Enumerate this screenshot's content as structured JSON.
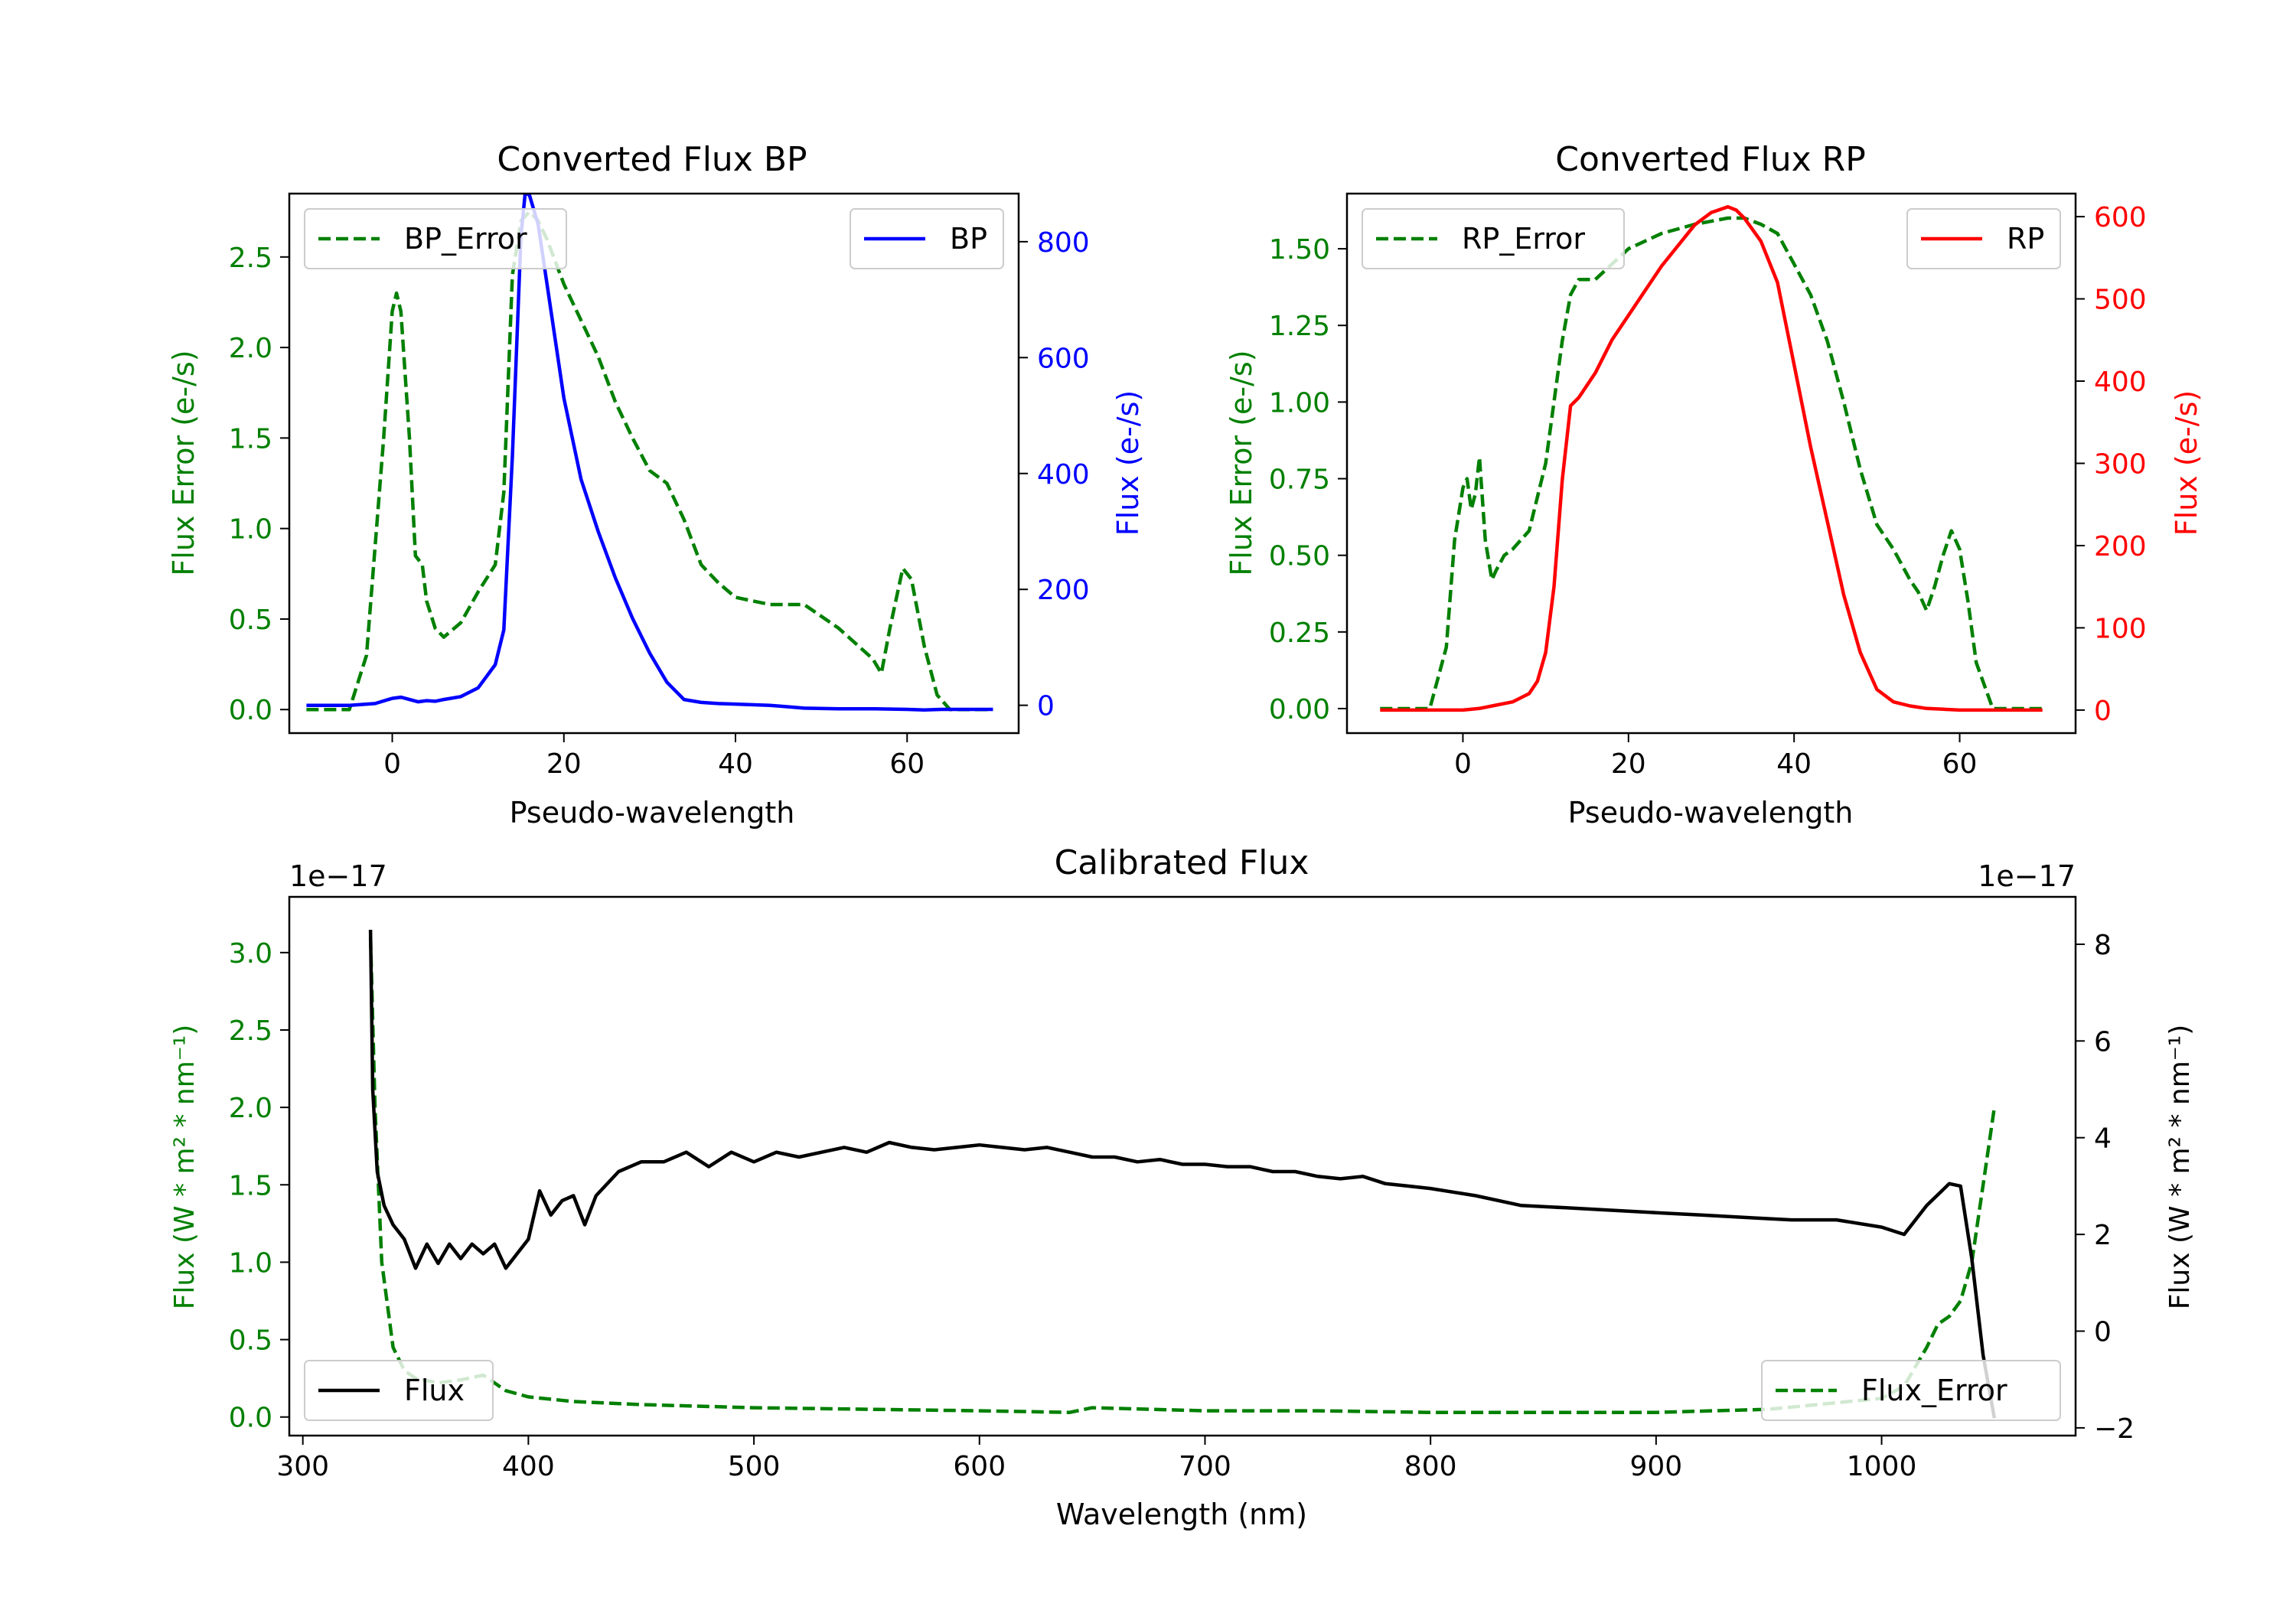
{
  "chart_data": [
    {
      "id": "bp",
      "type": "line",
      "title": "Converted Flux BP",
      "xlabel": "Pseudo-wavelength",
      "ylabel_left": "Flux Error (e-/s)",
      "ylabel_right": "Flux (e-/s)",
      "xlim": [
        -12,
        73
      ],
      "ylim_left": [
        -0.13,
        2.85
      ],
      "ylim_right": [
        -48,
        883
      ],
      "xticks": [
        0,
        20,
        40,
        60
      ],
      "yticks_left": [
        0.0,
        0.5,
        1.0,
        1.5,
        2.0,
        2.5
      ],
      "yticks_left_labels": [
        "0.0",
        "0.5",
        "1.0",
        "1.5",
        "2.0",
        "2.5"
      ],
      "yticks_right": [
        0,
        200,
        400,
        600,
        800
      ],
      "yticks_right_labels": [
        "0",
        "200",
        "400",
        "600",
        "800"
      ],
      "legend_left": {
        "label": "BP_Error",
        "position": "upper-left"
      },
      "legend_right": {
        "label": "BP",
        "position": "upper-right"
      },
      "colors": {
        "error": "#008000",
        "flux": "#0000ff",
        "left_axis": "#008000",
        "right_axis": "#0000ff"
      },
      "series": [
        {
          "name": "BP_Error",
          "axis": "left",
          "style": "dashed",
          "color": "#008000",
          "x": [
            -10,
            -5,
            -3,
            -1,
            0,
            0.5,
            1,
            2,
            2.7,
            3.5,
            4,
            5,
            6,
            8,
            10,
            12,
            13,
            14,
            15,
            16,
            17,
            18,
            20,
            22,
            24,
            26,
            28,
            30,
            32,
            34,
            36,
            38,
            40,
            44,
            48,
            52,
            56,
            57,
            58,
            59.5,
            60.5,
            62,
            63.5,
            65,
            70
          ],
          "y": [
            0.0,
            0.0,
            0.3,
            1.5,
            2.2,
            2.3,
            2.2,
            1.5,
            0.85,
            0.8,
            0.6,
            0.45,
            0.4,
            0.48,
            0.65,
            0.8,
            1.2,
            2.4,
            2.7,
            2.75,
            2.7,
            2.6,
            2.35,
            2.15,
            1.95,
            1.7,
            1.5,
            1.32,
            1.25,
            1.05,
            0.8,
            0.7,
            0.62,
            0.58,
            0.58,
            0.45,
            0.28,
            0.2,
            0.45,
            0.78,
            0.72,
            0.35,
            0.08,
            0.0,
            0.0
          ]
        },
        {
          "name": "BP",
          "axis": "right",
          "style": "solid",
          "color": "#0000ff",
          "x": [
            -10,
            -5,
            -2,
            0,
            1,
            2,
            3,
            4,
            5,
            6,
            8,
            10,
            12,
            13,
            14,
            15,
            15.5,
            16,
            17,
            18,
            20,
            22,
            24,
            26,
            28,
            30,
            32,
            34,
            36,
            38,
            40,
            44,
            48,
            52,
            56,
            60,
            62,
            64,
            66,
            70
          ],
          "y": [
            0,
            0,
            3,
            12,
            14,
            10,
            6,
            8,
            7,
            10,
            15,
            30,
            70,
            130,
            430,
            810,
            885,
            880,
            830,
            730,
            530,
            390,
            300,
            220,
            150,
            90,
            40,
            10,
            5,
            3,
            2,
            0,
            -5,
            -6,
            -6,
            -7,
            -8,
            -7,
            -7,
            -7
          ]
        }
      ]
    },
    {
      "id": "rp",
      "type": "line",
      "title": "Converted Flux RP",
      "xlabel": "Pseudo-wavelength",
      "ylabel_left": "Flux Error (e-/s)",
      "ylabel_right": "Flux (e-/s)",
      "xlim": [
        -14,
        74
      ],
      "ylim_left": [
        -0.08,
        1.68
      ],
      "ylim_right": [
        -28,
        628
      ],
      "xticks": [
        0,
        20,
        40,
        60
      ],
      "yticks_left": [
        0.0,
        0.25,
        0.5,
        0.75,
        1.0,
        1.25,
        1.5
      ],
      "yticks_left_labels": [
        "0.00",
        "0.25",
        "0.50",
        "0.75",
        "1.00",
        "1.25",
        "1.50"
      ],
      "yticks_right": [
        0,
        100,
        200,
        300,
        400,
        500,
        600
      ],
      "yticks_right_labels": [
        "0",
        "100",
        "200",
        "300",
        "400",
        "500",
        "600"
      ],
      "legend_left": {
        "label": "RP_Error",
        "position": "upper-left"
      },
      "legend_right": {
        "label": "RP",
        "position": "upper-right"
      },
      "colors": {
        "error": "#008000",
        "flux": "#ff0000",
        "left_axis": "#008000",
        "right_axis": "#ff0000"
      },
      "series": [
        {
          "name": "RP_Error",
          "axis": "left",
          "style": "dashed",
          "color": "#008000",
          "x": [
            -10,
            -4,
            -2,
            -1,
            0,
            0.5,
            1,
            1.5,
            2,
            2.7,
            3.5,
            4,
            5,
            6,
            8,
            10,
            12,
            13,
            14,
            16,
            18,
            20,
            24,
            28,
            32,
            34,
            36,
            38,
            40,
            42,
            44,
            46,
            48,
            50,
            52,
            54,
            55,
            56,
            57,
            58,
            59,
            60,
            61,
            62,
            64,
            66,
            70
          ],
          "y": [
            0.0,
            0.0,
            0.2,
            0.55,
            0.72,
            0.75,
            0.65,
            0.7,
            0.82,
            0.55,
            0.42,
            0.45,
            0.5,
            0.52,
            0.58,
            0.8,
            1.2,
            1.35,
            1.4,
            1.4,
            1.45,
            1.5,
            1.55,
            1.58,
            1.6,
            1.6,
            1.58,
            1.55,
            1.45,
            1.35,
            1.2,
            1.0,
            0.78,
            0.6,
            0.52,
            0.42,
            0.38,
            0.32,
            0.4,
            0.5,
            0.58,
            0.52,
            0.35,
            0.15,
            0.0,
            0.0,
            0.0
          ]
        },
        {
          "name": "RP",
          "axis": "right",
          "style": "solid",
          "color": "#ff0000",
          "x": [
            -10,
            -2,
            0,
            2,
            4,
            6,
            8,
            9,
            10,
            11,
            12,
            13,
            14,
            16,
            18,
            20,
            24,
            28,
            30,
            32,
            33,
            34,
            36,
            38,
            40,
            42,
            44,
            46,
            48,
            50,
            52,
            54,
            56,
            58,
            60,
            62,
            64,
            66,
            70
          ],
          "y": [
            0,
            0,
            0,
            2,
            6,
            10,
            20,
            35,
            70,
            150,
            280,
            370,
            380,
            410,
            450,
            480,
            540,
            590,
            605,
            612,
            608,
            598,
            570,
            520,
            420,
            320,
            230,
            140,
            70,
            25,
            10,
            5,
            2,
            1,
            0,
            0,
            0,
            0,
            0
          ]
        }
      ]
    },
    {
      "id": "cal",
      "type": "line",
      "title": "Calibrated Flux",
      "xlabel": "Wavelength (nm)",
      "ylabel_left": "Flux (W * m² * nm⁻¹)",
      "ylabel_right": "Flux (W * m² * nm⁻¹)",
      "offset_left": "1e−17",
      "offset_right": "1e−17",
      "xlim": [
        294,
        1086
      ],
      "ylim_left": [
        -0.12,
        3.36
      ],
      "ylim_right": [
        -2.16,
        8.98
      ],
      "xticks": [
        300,
        400,
        500,
        600,
        700,
        800,
        900,
        1000
      ],
      "yticks_left": [
        0.0,
        0.5,
        1.0,
        1.5,
        2.0,
        2.5,
        3.0
      ],
      "yticks_left_labels": [
        "0.0",
        "0.5",
        "1.0",
        "1.5",
        "2.0",
        "2.5",
        "3.0"
      ],
      "yticks_right": [
        -2,
        0,
        2,
        4,
        6,
        8
      ],
      "yticks_right_labels": [
        "−2",
        "0",
        "2",
        "4",
        "6",
        "8"
      ],
      "legend_left": {
        "label": "Flux",
        "position": "lower-left"
      },
      "legend_right": {
        "label": "Flux_Error",
        "position": "lower-right"
      },
      "colors": {
        "error": "#008000",
        "flux": "#000000",
        "left_axis": "#008000",
        "right_axis": "#000000"
      },
      "series": [
        {
          "name": "Flux_Error",
          "axis": "left",
          "style": "dashed",
          "color": "#008000",
          "x": [
            330,
            332,
            335,
            340,
            345,
            350,
            360,
            370,
            380,
            385,
            390,
            400,
            420,
            450,
            500,
            550,
            600,
            640,
            650,
            700,
            750,
            800,
            850,
            900,
            950,
            1000,
            1010,
            1020,
            1025,
            1030,
            1035,
            1040,
            1045,
            1050
          ],
          "y": [
            3.1,
            2.0,
            1.0,
            0.45,
            0.3,
            0.25,
            0.22,
            0.24,
            0.27,
            0.22,
            0.17,
            0.13,
            0.1,
            0.08,
            0.06,
            0.05,
            0.04,
            0.03,
            0.06,
            0.04,
            0.04,
            0.03,
            0.03,
            0.03,
            0.05,
            0.12,
            0.2,
            0.45,
            0.6,
            0.65,
            0.75,
            1.0,
            1.5,
            2.0
          ]
        },
        {
          "name": "Flux",
          "axis": "right",
          "style": "solid",
          "color": "#000000",
          "x": [
            330,
            331,
            333,
            336,
            340,
            345,
            350,
            355,
            360,
            365,
            370,
            375,
            380,
            385,
            390,
            395,
            400,
            405,
            410,
            415,
            420,
            425,
            430,
            440,
            450,
            460,
            470,
            480,
            490,
            500,
            510,
            520,
            530,
            540,
            550,
            560,
            570,
            580,
            590,
            600,
            610,
            620,
            630,
            640,
            650,
            660,
            670,
            680,
            690,
            700,
            710,
            720,
            730,
            740,
            750,
            760,
            770,
            780,
            790,
            800,
            820,
            840,
            860,
            880,
            900,
            920,
            940,
            960,
            980,
            1000,
            1010,
            1020,
            1030,
            1035,
            1040,
            1045,
            1050
          ],
          "y": [
            8.3,
            5.0,
            3.3,
            2.6,
            2.2,
            1.9,
            1.3,
            1.8,
            1.4,
            1.8,
            1.5,
            1.8,
            1.6,
            1.8,
            1.3,
            1.6,
            1.9,
            2.9,
            2.4,
            2.7,
            2.8,
            2.2,
            2.8,
            3.3,
            3.5,
            3.5,
            3.7,
            3.4,
            3.7,
            3.5,
            3.7,
            3.6,
            3.7,
            3.8,
            3.7,
            3.9,
            3.8,
            3.75,
            3.8,
            3.85,
            3.8,
            3.75,
            3.8,
            3.7,
            3.6,
            3.6,
            3.5,
            3.55,
            3.45,
            3.45,
            3.4,
            3.4,
            3.3,
            3.3,
            3.2,
            3.15,
            3.2,
            3.05,
            3.0,
            2.95,
            2.8,
            2.6,
            2.55,
            2.5,
            2.45,
            2.4,
            2.35,
            2.3,
            2.3,
            2.15,
            2.0,
            2.6,
            3.05,
            3.0,
            1.5,
            -0.5,
            -1.8
          ]
        }
      ]
    }
  ]
}
